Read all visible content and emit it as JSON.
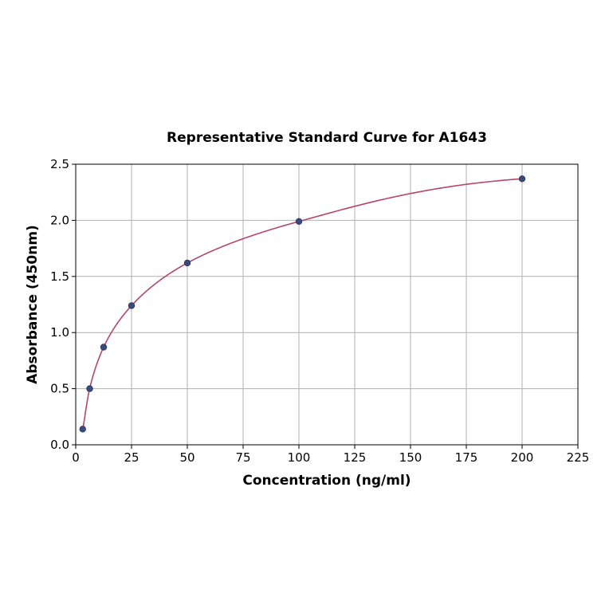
{
  "chart_data": {
    "type": "line",
    "title": "Representative Standard Curve for A1643",
    "xlabel": "Concentration (ng/ml)",
    "ylabel": "Absorbance (450nm)",
    "xlim": [
      0,
      225
    ],
    "ylim": [
      0,
      2.5
    ],
    "xticks": [
      "0",
      "25",
      "50",
      "75",
      "100",
      "125",
      "150",
      "175",
      "200",
      "225"
    ],
    "yticks": [
      "0.0",
      "0.5",
      "1.0",
      "1.5",
      "2.0",
      "2.5"
    ],
    "grid": true,
    "legend": null,
    "series": [
      {
        "name": "Standard points",
        "style": "scatter",
        "color": "#3b4a7a",
        "x": [
          3.125,
          6.25,
          12.5,
          25,
          50,
          100,
          200
        ],
        "y": [
          0.14,
          0.5,
          0.87,
          1.24,
          1.62,
          1.99,
          2.37
        ]
      },
      {
        "name": "Fitted curve",
        "style": "line",
        "color": "#b5466b"
      }
    ]
  },
  "colors": {
    "curve": "#b5466b",
    "points": "#3b4a7a",
    "grid": "#b0b0b0",
    "axis": "#000000"
  }
}
